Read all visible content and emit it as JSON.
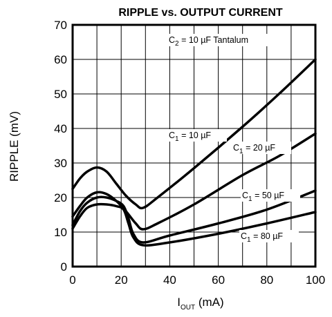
{
  "chart_data": {
    "type": "line",
    "title": "RIPPLE vs. OUTPUT CURRENT",
    "xlabel": {
      "main": "I",
      "sub": "OUT",
      "unit": " (mA)"
    },
    "ylabel": "RIPPLE (mV)",
    "xlim": [
      0,
      100
    ],
    "ylim": [
      0,
      70
    ],
    "xticks": [
      "0",
      "20",
      "40",
      "60",
      "80",
      "100"
    ],
    "yticks": [
      "0",
      "10",
      "20",
      "30",
      "40",
      "50",
      "60",
      "70"
    ],
    "grid": true,
    "annotation": {
      "prefix": "C",
      "sub": "2",
      "text": " = 10 µF Tantalum"
    },
    "series": [
      {
        "name": "C1 = 10 µF",
        "label": {
          "prefix": "C",
          "sub": "1",
          "text": " = 10 µF"
        },
        "points": [
          [
            0,
            22.5
          ],
          [
            3,
            25.5
          ],
          [
            6,
            27.5
          ],
          [
            10,
            28.7
          ],
          [
            14,
            27.5
          ],
          [
            18,
            24.0
          ],
          [
            22,
            20.5
          ],
          [
            26,
            18.0
          ],
          [
            29,
            17.0
          ],
          [
            35,
            20.0
          ],
          [
            50,
            28.5
          ],
          [
            70,
            40.5
          ],
          [
            85,
            50.0
          ],
          [
            100,
            60.0
          ]
        ]
      },
      {
        "name": "C1 = 20 µF",
        "label": {
          "prefix": "C",
          "sub": "1",
          "text": " = 20 µF"
        },
        "points": [
          [
            0,
            14.5
          ],
          [
            3,
            17.5
          ],
          [
            6,
            20.0
          ],
          [
            10,
            21.5
          ],
          [
            14,
            21.0
          ],
          [
            18,
            19.0
          ],
          [
            22,
            16.0
          ],
          [
            26,
            12.5
          ],
          [
            29,
            10.8
          ],
          [
            35,
            12.5
          ],
          [
            50,
            18.0
          ],
          [
            70,
            26.5
          ],
          [
            85,
            32.0
          ],
          [
            100,
            38.5
          ]
        ]
      },
      {
        "name": "C1 = 50 µF",
        "label": {
          "prefix": "C",
          "sub": "1",
          "text": " = 50 µF"
        },
        "points": [
          [
            0,
            12.0
          ],
          [
            3,
            16.0
          ],
          [
            6,
            18.5
          ],
          [
            10,
            20.0
          ],
          [
            14,
            20.0
          ],
          [
            18,
            19.0
          ],
          [
            21,
            17.5
          ],
          [
            23,
            14.0
          ],
          [
            25,
            9.5
          ],
          [
            29,
            7.0
          ],
          [
            40,
            9.0
          ],
          [
            60,
            12.5
          ],
          [
            80,
            16.5
          ],
          [
            100,
            22.0
          ]
        ]
      },
      {
        "name": "C1 = 80 µF",
        "label": {
          "prefix": "C",
          "sub": "1",
          "text": " = 80 µF"
        },
        "points": [
          [
            0,
            11.0
          ],
          [
            3,
            14.5
          ],
          [
            6,
            17.0
          ],
          [
            10,
            18.0
          ],
          [
            14,
            18.0
          ],
          [
            18,
            17.5
          ],
          [
            21,
            16.5
          ],
          [
            23,
            12.5
          ],
          [
            25,
            8.5
          ],
          [
            29,
            6.2
          ],
          [
            40,
            7.0
          ],
          [
            60,
            9.5
          ],
          [
            80,
            12.5
          ],
          [
            100,
            15.8
          ]
        ]
      }
    ]
  }
}
